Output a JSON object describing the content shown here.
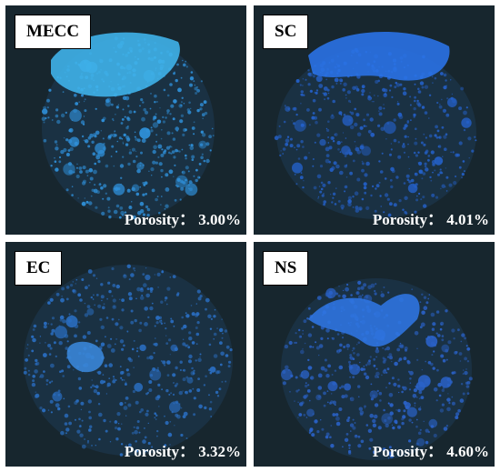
{
  "panels": [
    {
      "label": "MECC",
      "porosity": "Porosity： 3.00%",
      "highlight": "#3fb2ea",
      "pore": "#2f8fd8"
    },
    {
      "label": "SC",
      "porosity": "Porosity： 4.01%",
      "highlight": "#2a72e6",
      "pore": "#2460c8"
    },
    {
      "label": "EC",
      "porosity": "Porosity： 3.32%",
      "highlight": "#3a86d8",
      "pore": "#2a6fc4"
    },
    {
      "label": "NS",
      "porosity": "Porosity： 4.60%",
      "highlight": "#2f74e0",
      "pore": "#2a62c8"
    }
  ],
  "colors": {
    "background": "#17262e",
    "tag_bg": "#ffffff",
    "text": "#ffffff"
  }
}
